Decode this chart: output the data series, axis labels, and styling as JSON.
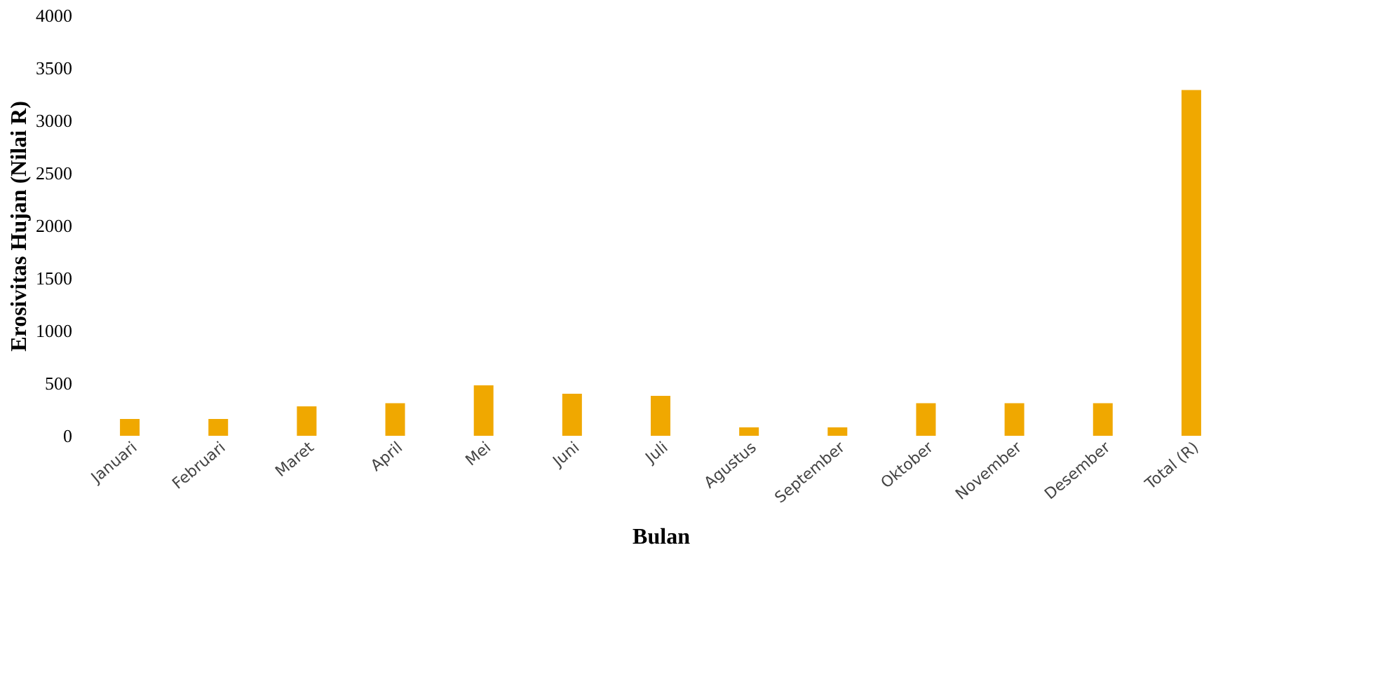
{
  "chart_data": {
    "type": "bar",
    "xlabel": "Bulan",
    "ylabel": "Erosivitas Hujan (Nilai R)",
    "categories": [
      "Januari",
      "Februari",
      "Maret",
      "April",
      "Mei",
      "Juni",
      "Juli",
      "Agustus",
      "September",
      "Oktober",
      "November",
      "Desember",
      "Total (R)"
    ],
    "values": [
      160,
      160,
      280,
      310,
      480,
      400,
      380,
      80,
      80,
      310,
      310,
      310,
      3290
    ],
    "color": "#f0a800",
    "ylim": [
      0,
      4000
    ],
    "yticks": [
      0,
      500,
      1000,
      1500,
      2000,
      2500,
      3000,
      3500,
      4000
    ],
    "grid": false
  }
}
